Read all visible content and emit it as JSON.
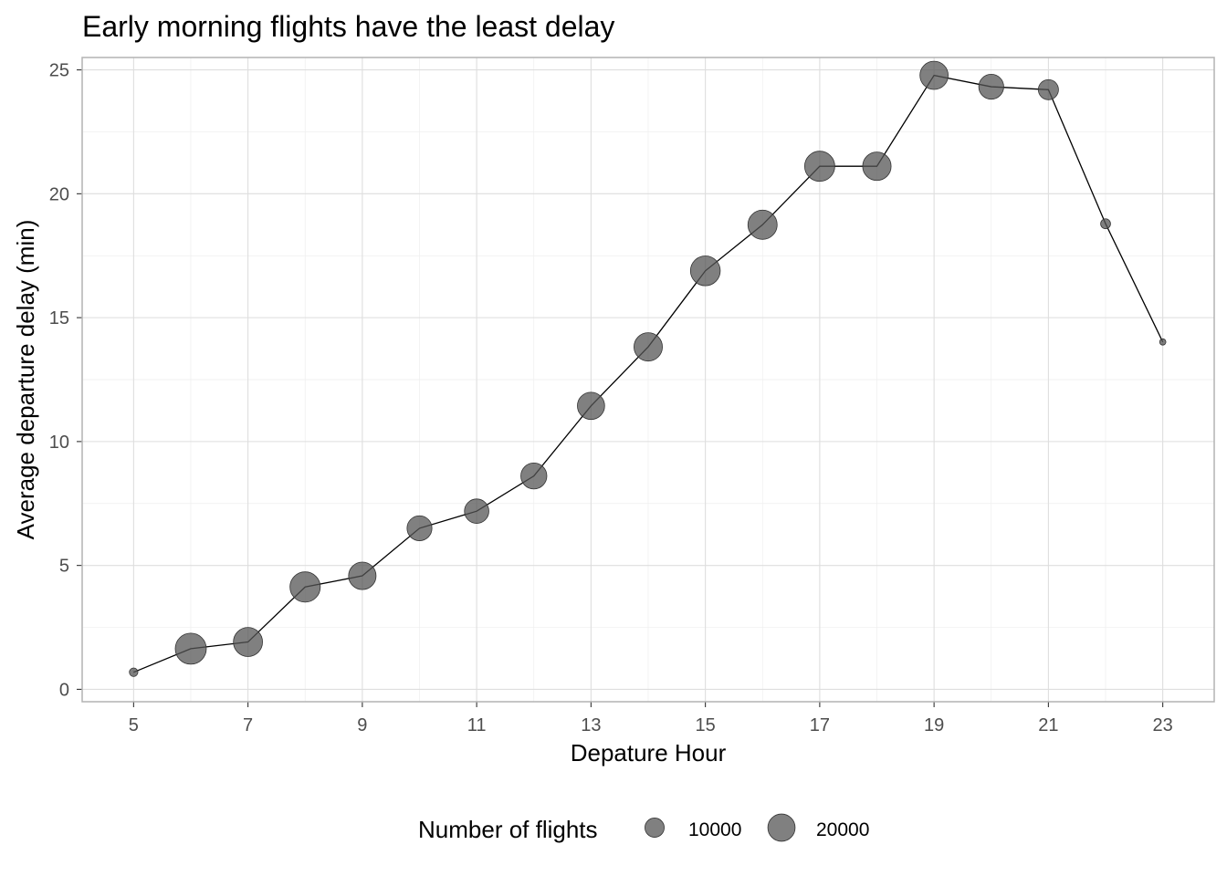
{
  "chart_data": {
    "type": "scatter",
    "title": "Early morning flights have the least delay",
    "xlabel": "Depature Hour",
    "ylabel": "Average departure delay (min)",
    "xlim": [
      4.1,
      23.9
    ],
    "ylim": [
      -0.5,
      25.5
    ],
    "x_ticks": [
      5,
      7,
      9,
      11,
      13,
      15,
      17,
      19,
      21,
      23
    ],
    "y_ticks": [
      0,
      5,
      10,
      15,
      20,
      25
    ],
    "grid": true,
    "legend_position": "bottom",
    "series": [
      {
        "x": [
          5,
          6,
          7,
          8,
          9,
          10,
          11,
          12,
          13,
          14,
          15,
          16,
          17,
          18,
          19,
          20,
          21,
          22,
          23
        ],
        "y": [
          0.69,
          1.64,
          1.91,
          4.13,
          4.58,
          6.5,
          7.19,
          8.61,
          11.44,
          13.82,
          16.89,
          18.75,
          21.11,
          21.11,
          24.78,
          24.32,
          24.2,
          18.79,
          14.02
        ],
        "flights": [
          1953,
          25951,
          22821,
          24742,
          20312,
          16708,
          16033,
          18181,
          19956,
          21706,
          23888,
          23002,
          24426,
          21783,
          21441,
          16739,
          10933,
          2639,
          1061
        ]
      }
    ],
    "size_legend": {
      "title": "Number of flights",
      "entries": [
        {
          "label": "10000",
          "value": 10000
        },
        {
          "label": "20000",
          "value": 20000
        }
      ]
    },
    "colors": {
      "point_fill": "#555555",
      "line": "#000000",
      "grid": "#dedede",
      "frame": "#b3b3b3"
    }
  }
}
